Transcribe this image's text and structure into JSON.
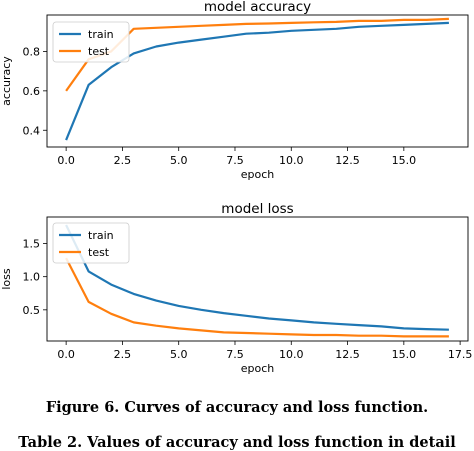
{
  "figure_caption": "Figure 6.   Curves of accuracy and loss function.",
  "table_caption": "Table 2. Values of accuracy and loss function in detail",
  "chart_data": [
    {
      "type": "line",
      "title": "model accuracy",
      "xlabel": "epoch",
      "ylabel": "accuracy",
      "xlim": [
        -0.85,
        17.85
      ],
      "ylim": [
        0.315,
        0.985
      ],
      "xticks": [
        0,
        2.5,
        5,
        7.5,
        10,
        12.5,
        15
      ],
      "xtick_labels": [
        "0.0",
        "2.5",
        "5.0",
        "7.5",
        "10.0",
        "12.5",
        "15.0"
      ],
      "yticks": [
        0.4,
        0.6,
        0.8
      ],
      "ytick_labels": [
        "0.4",
        "0.6",
        "0.8"
      ],
      "legend_position": "upper-left",
      "x": [
        0,
        1,
        2,
        3,
        4,
        5,
        6,
        7,
        8,
        9,
        10,
        11,
        12,
        13,
        14,
        15,
        16,
        17
      ],
      "series": [
        {
          "name": "train",
          "color": "#1f77b4",
          "values": [
            0.35,
            0.63,
            0.72,
            0.79,
            0.825,
            0.845,
            0.86,
            0.875,
            0.89,
            0.895,
            0.905,
            0.91,
            0.915,
            0.925,
            0.93,
            0.935,
            0.94,
            0.945
          ]
        },
        {
          "name": "test",
          "color": "#ff7f0e",
          "values": [
            0.6,
            0.76,
            0.8,
            0.915,
            0.92,
            0.925,
            0.93,
            0.935,
            0.94,
            0.942,
            0.945,
            0.948,
            0.95,
            0.955,
            0.955,
            0.96,
            0.96,
            0.965
          ]
        }
      ]
    },
    {
      "type": "line",
      "title": "model loss",
      "xlabel": "epoch",
      "ylabel": "loss",
      "xlim": [
        -0.85,
        17.85
      ],
      "ylim": [
        0.03,
        1.9
      ],
      "xticks": [
        0,
        2.5,
        5,
        7.5,
        10,
        12.5,
        15,
        17.5
      ],
      "xtick_labels": [
        "0.0",
        "2.5",
        "5.0",
        "7.5",
        "10.0",
        "12.5",
        "15.0",
        "17.5"
      ],
      "yticks": [
        0.5,
        1.0,
        1.5
      ],
      "ytick_labels": [
        "0.5",
        "1.0",
        "1.5"
      ],
      "legend_position": "upper-left",
      "x": [
        0,
        1,
        2,
        3,
        4,
        5,
        6,
        7,
        8,
        9,
        10,
        11,
        12,
        13,
        14,
        15,
        16,
        17
      ],
      "series": [
        {
          "name": "train",
          "color": "#1f77b4",
          "values": [
            1.78,
            1.08,
            0.88,
            0.74,
            0.64,
            0.56,
            0.5,
            0.45,
            0.41,
            0.37,
            0.34,
            0.31,
            0.29,
            0.27,
            0.25,
            0.22,
            0.21,
            0.2
          ]
        },
        {
          "name": "test",
          "color": "#ff7f0e",
          "values": [
            1.28,
            0.62,
            0.44,
            0.31,
            0.26,
            0.22,
            0.19,
            0.16,
            0.15,
            0.14,
            0.13,
            0.12,
            0.12,
            0.11,
            0.11,
            0.1,
            0.1,
            0.1
          ]
        }
      ]
    }
  ]
}
